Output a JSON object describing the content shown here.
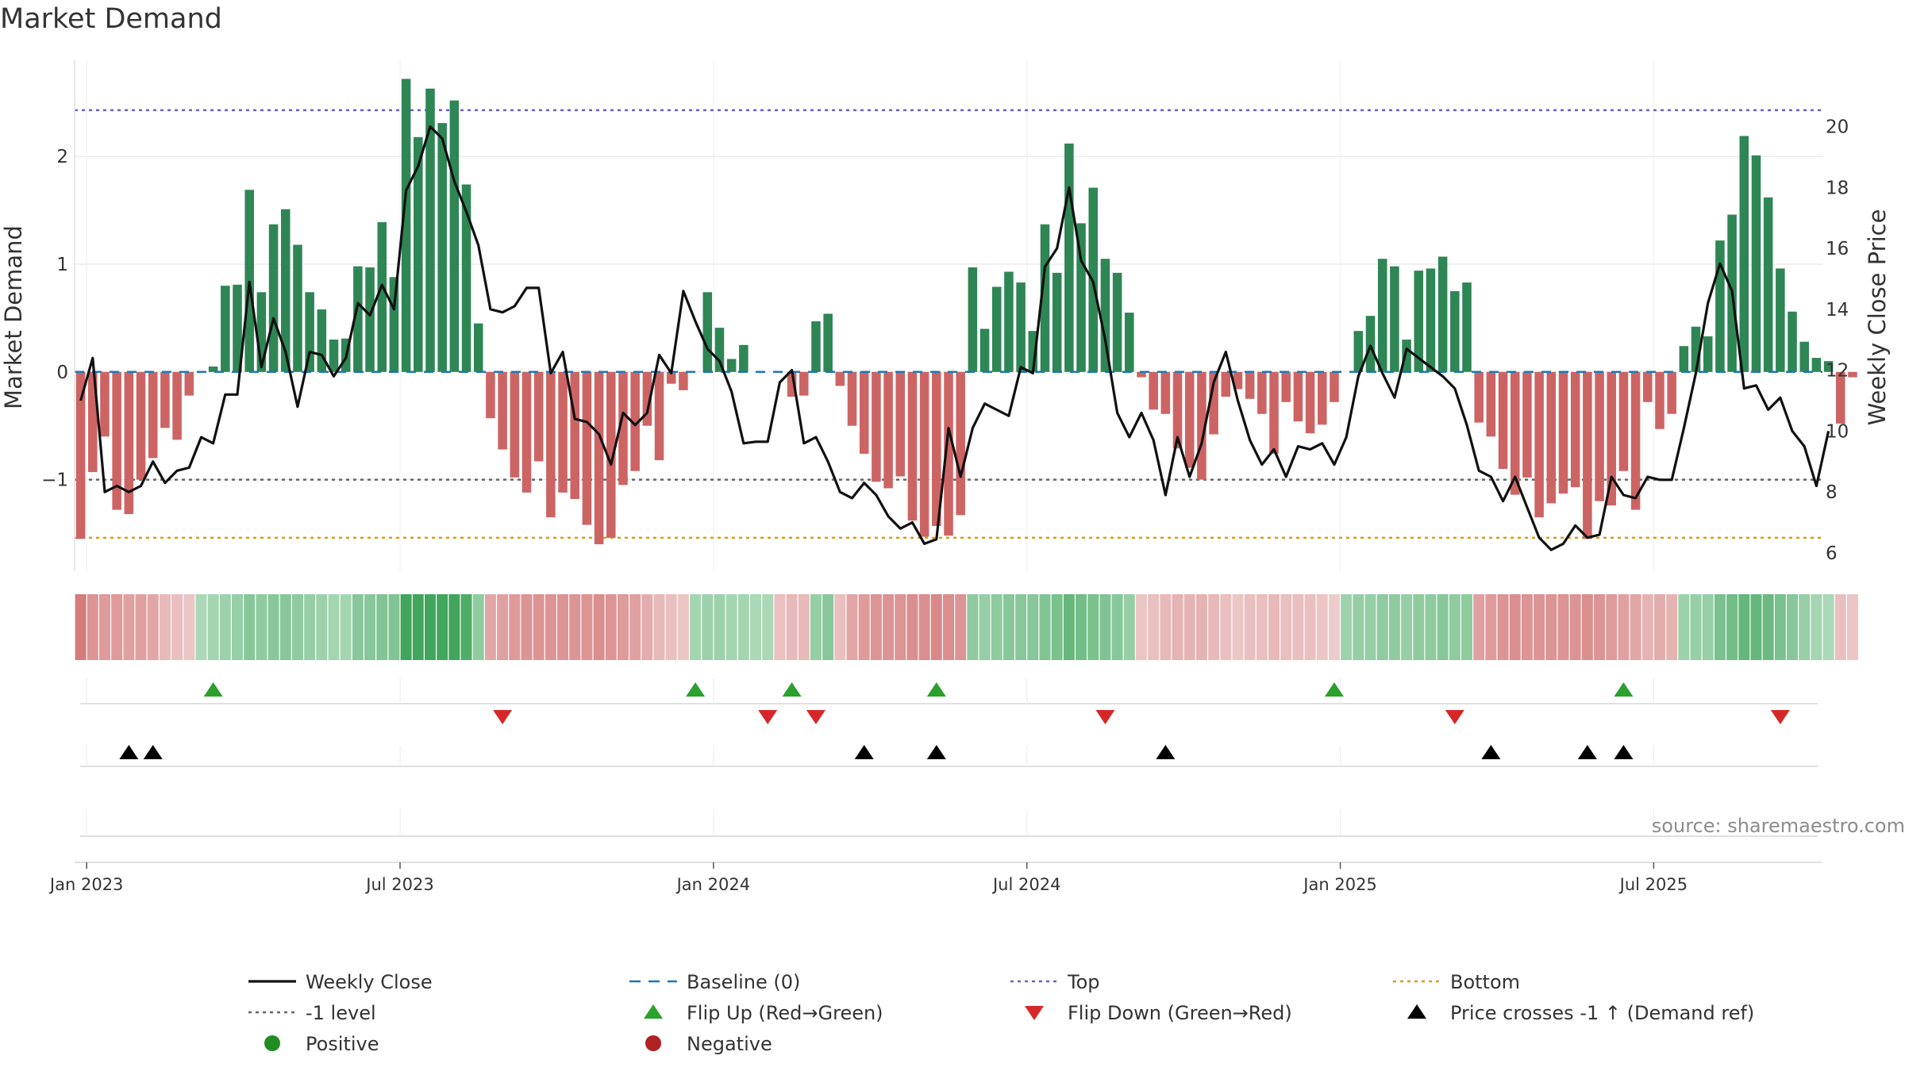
{
  "chart_data": {
    "type": "bar",
    "title": "Market Demand",
    "ylabel_left": "Market Demand",
    "ylabel_right": "Weekly Close Price",
    "ylim_left": [
      -1.85,
      2.9
    ],
    "ylim_right": [
      5.4,
      22.2
    ],
    "yticks_left": [
      -1,
      0,
      1,
      2
    ],
    "yticks_right": [
      6,
      8,
      10,
      12,
      14,
      16,
      18,
      20
    ],
    "reference_lines": {
      "baseline": 0,
      "top": 2.43,
      "minus_one": -1,
      "bottom": -1.54
    },
    "date_ticks": [
      {
        "label": "Jan 2023",
        "week": 1
      },
      {
        "label": "Jul 2023",
        "week": 27
      },
      {
        "label": "Jan 2024",
        "week": 53
      },
      {
        "label": "Jul 2024",
        "week": 79
      },
      {
        "label": "Jan 2025",
        "week": 105
      },
      {
        "label": "Jul 2025",
        "week": 131
      }
    ],
    "week_count": 145,
    "demand": [
      -1.55,
      -0.93,
      -0.6,
      -1.28,
      -1.32,
      -1.0,
      -0.8,
      -0.52,
      -0.63,
      -0.22,
      0.0,
      0.05,
      0.8,
      0.81,
      1.69,
      0.74,
      1.37,
      1.51,
      1.18,
      0.74,
      0.58,
      0.3,
      0.31,
      0.98,
      0.97,
      1.39,
      0.88,
      2.72,
      2.18,
      2.63,
      2.31,
      2.52,
      1.74,
      0.45,
      -0.43,
      -0.72,
      -0.98,
      -1.12,
      -0.83,
      -1.35,
      -1.12,
      -1.18,
      -1.42,
      -1.6,
      -1.54,
      -1.05,
      -0.92,
      -0.5,
      -0.82,
      -0.11,
      -0.17,
      0.0,
      0.74,
      0.41,
      0.12,
      0.25,
      0.0,
      0.0,
      0.0,
      -0.23,
      -0.22,
      0.47,
      0.54,
      -0.13,
      -0.5,
      -0.76,
      -1.02,
      -1.08,
      -0.97,
      -1.38,
      -1.53,
      -1.43,
      -1.52,
      -1.33,
      0.97,
      0.4,
      0.79,
      0.93,
      0.83,
      0.38,
      1.37,
      0.92,
      2.12,
      1.38,
      1.71,
      1.05,
      0.92,
      0.55,
      -0.05,
      -0.35,
      -0.39,
      -0.71,
      -0.89,
      -1.0,
      -0.58,
      -0.23,
      -0.16,
      -0.25,
      -0.39,
      -0.76,
      -0.28,
      -0.46,
      -0.57,
      -0.49,
      -0.28,
      0.0,
      0.38,
      0.52,
      1.05,
      0.98,
      0.3,
      0.94,
      0.96,
      1.07,
      0.75,
      0.83,
      -0.47,
      -0.6,
      -0.9,
      -1.14,
      -0.98,
      -1.35,
      -1.22,
      -1.13,
      -1.07,
      -1.55,
      -1.2,
      -1.24,
      -0.92,
      -1.28,
      -0.28,
      -0.53,
      -0.39,
      0.24,
      0.42,
      0.33,
      1.22,
      1.46,
      2.19,
      2.01,
      1.62,
      0.96,
      0.56,
      0.28,
      0.13,
      0.1,
      -0.48,
      -0.05
    ],
    "weekly_close": [
      11.0,
      12.4,
      8.0,
      8.2,
      8.0,
      8.2,
      9.0,
      8.3,
      8.7,
      8.8,
      9.8,
      9.6,
      11.2,
      11.2,
      14.9,
      12.1,
      13.7,
      12.6,
      10.8,
      12.6,
      12.5,
      11.8,
      12.4,
      14.2,
      13.8,
      14.8,
      14.0,
      17.9,
      18.7,
      20.0,
      19.6,
      18.2,
      17.2,
      16.1,
      14.0,
      13.9,
      14.1,
      14.7,
      14.7,
      11.9,
      12.6,
      10.4,
      10.3,
      9.9,
      8.9,
      10.6,
      10.2,
      10.6,
      12.5,
      11.9,
      14.6,
      13.6,
      12.7,
      12.3,
      11.3,
      9.6,
      9.65,
      9.65,
      11.6,
      12.0,
      9.6,
      9.8,
      9.0,
      8.0,
      7.8,
      8.3,
      7.9,
      7.2,
      6.8,
      7.0,
      6.3,
      6.45,
      10.1,
      8.5,
      10.1,
      10.9,
      10.7,
      10.5,
      12.1,
      11.9,
      15.4,
      16.0,
      18.0,
      15.6,
      14.9,
      13.0,
      10.6,
      9.8,
      10.6,
      9.7,
      7.9,
      9.8,
      8.5,
      9.6,
      11.6,
      12.6,
      11.0,
      9.7,
      8.9,
      9.4,
      8.5,
      9.5,
      9.4,
      9.6,
      8.9,
      9.8,
      11.8,
      12.8,
      11.9,
      11.1,
      12.7,
      12.4,
      12.1,
      11.8,
      11.4,
      10.2,
      8.7,
      8.5,
      7.7,
      8.5,
      7.5,
      6.5,
      6.1,
      6.3,
      6.9,
      6.5,
      6.6,
      8.5,
      7.9,
      7.8,
      8.5,
      8.4,
      8.4,
      10.1,
      11.9,
      14.2,
      15.5,
      14.6,
      11.4,
      11.5,
      10.7,
      11.1,
      10.0,
      9.5,
      8.2,
      10.0
    ],
    "color_strip": [
      -0.8,
      -0.6,
      -0.55,
      -0.55,
      -0.5,
      -0.5,
      -0.45,
      -0.3,
      -0.25,
      -0.2,
      0.2,
      0.25,
      0.3,
      0.35,
      0.45,
      0.4,
      0.45,
      0.45,
      0.4,
      0.35,
      0.3,
      0.25,
      0.25,
      0.45,
      0.45,
      0.5,
      0.5,
      0.95,
      0.95,
      0.95,
      0.95,
      0.95,
      0.85,
      0.4,
      -0.45,
      -0.5,
      -0.55,
      -0.6,
      -0.6,
      -0.6,
      -0.6,
      -0.6,
      -0.6,
      -0.65,
      -0.6,
      -0.55,
      -0.5,
      -0.4,
      -0.3,
      -0.25,
      -0.2,
      0.25,
      0.3,
      0.3,
      0.25,
      0.25,
      0.2,
      0.2,
      -0.25,
      -0.3,
      -0.3,
      0.35,
      0.45,
      -0.25,
      -0.45,
      -0.55,
      -0.6,
      -0.6,
      -0.6,
      -0.65,
      -0.65,
      -0.7,
      -0.65,
      -0.6,
      0.4,
      0.35,
      0.4,
      0.45,
      0.45,
      0.45,
      0.5,
      0.55,
      0.7,
      0.6,
      0.55,
      0.5,
      0.45,
      0.35,
      -0.2,
      -0.25,
      -0.3,
      -0.35,
      -0.35,
      -0.35,
      -0.3,
      -0.25,
      -0.2,
      -0.25,
      -0.25,
      -0.3,
      -0.25,
      -0.25,
      -0.25,
      -0.2,
      -0.15,
      0.3,
      0.35,
      0.35,
      0.4,
      0.4,
      0.35,
      0.4,
      0.4,
      0.45,
      0.4,
      0.4,
      -0.5,
      -0.55,
      -0.6,
      -0.65,
      -0.6,
      -0.6,
      -0.6,
      -0.6,
      -0.6,
      -0.65,
      -0.6,
      -0.55,
      -0.5,
      -0.45,
      -0.35,
      -0.4,
      -0.35,
      0.3,
      0.35,
      0.35,
      0.55,
      0.6,
      0.7,
      0.7,
      0.65,
      0.55,
      0.45,
      0.35,
      0.25,
      0.2,
      -0.25,
      -0.2
    ],
    "flip_up_weeks": [
      11,
      51,
      59,
      71,
      104,
      128
    ],
    "flip_down_weeks": [
      35,
      57,
      61,
      85,
      114,
      141
    ],
    "price_cross_weeks": [
      4,
      6,
      65,
      71,
      90,
      117,
      125,
      128
    ]
  },
  "source": "source: sharemaestro.com",
  "legend": [
    {
      "label": "Weekly Close",
      "symbol": "line",
      "color": "#111111"
    },
    {
      "label": "Baseline (0)",
      "symbol": "dash",
      "color": "#1f77b4"
    },
    {
      "label": "Top",
      "symbol": "dot",
      "color": "#6b5fd3"
    },
    {
      "label": "Bottom",
      "symbol": "dot",
      "color": "#d99a1c"
    },
    {
      "label": "-1 level",
      "symbol": "dot",
      "color": "#666666"
    },
    {
      "label": "Flip Up (Red→Green)",
      "symbol": "tri-up",
      "color": "#2ca02c"
    },
    {
      "label": "Flip Down (Green→Red)",
      "symbol": "tri-down",
      "color": "#d62728"
    },
    {
      "label": "Price crosses -1 ↑ (Demand ref)",
      "symbol": "tri-up",
      "color": "#000000"
    },
    {
      "label": "Positive",
      "symbol": "circle",
      "color": "#228b22"
    },
    {
      "label": "Negative",
      "symbol": "circle",
      "color": "#b22222"
    }
  ],
  "colors": {
    "positive_bar": "#2e8655",
    "negative_bar": "#cd6464",
    "line": "#111111",
    "grid": "#e6e6e6",
    "baseline": "#1f77b4",
    "top": "#6b5fd3",
    "bottom": "#d99a1c",
    "minus_one": "#666666",
    "flip_up": "#2ca02c",
    "flip_down": "#d62728",
    "cross": "#000000",
    "strip_positive": "#3aa356",
    "strip_negative": "#cd6464"
  }
}
